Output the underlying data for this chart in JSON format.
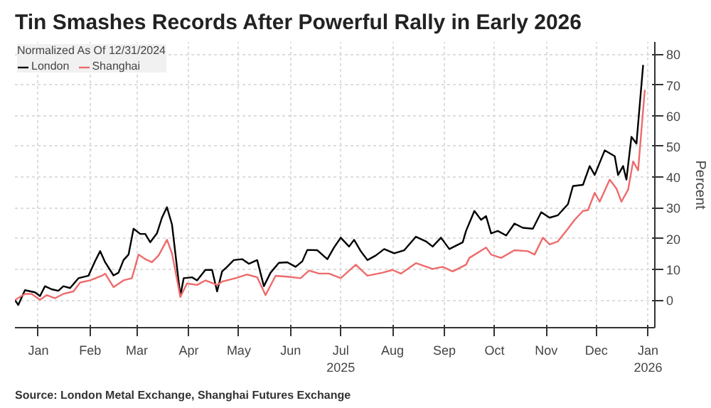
{
  "chart_data": {
    "type": "line",
    "title": "Tin Smashes Records After Powerful Rally in Early 2026",
    "legend_title": "Normalized As Of 12/31/2024",
    "ylabel": "Percent",
    "annotations": [
      "Source: London Metal Exchange, Shanghai Futures Exchange"
    ],
    "xlim": [
      "2025-01-01",
      "2026-01-19"
    ],
    "xticks": [
      {
        "value": "2025-01-15",
        "label": "Jan"
      },
      {
        "value": "2025-02-15",
        "label": "Feb"
      },
      {
        "value": "2025-03-15",
        "label": "Mar"
      },
      {
        "value": "2025-04-15",
        "label": "Apr"
      },
      {
        "value": "2025-05-15",
        "label": "May"
      },
      {
        "value": "2025-06-15",
        "label": "Jun"
      },
      {
        "value": "2025-07-15",
        "label": "Jul\n2025"
      },
      {
        "value": "2025-08-15",
        "label": "Aug"
      },
      {
        "value": "2025-09-15",
        "label": "Sep"
      },
      {
        "value": "2025-10-15",
        "label": "Oct"
      },
      {
        "value": "2025-11-15",
        "label": "Nov"
      },
      {
        "value": "2025-12-15",
        "label": "Dec"
      },
      {
        "value": "2026-01-15",
        "label": "Jan\n2026"
      }
    ],
    "ylim": [
      -9,
      84
    ],
    "yticks": [
      0,
      10,
      20,
      30,
      40,
      50,
      60,
      70,
      80
    ],
    "grid": true,
    "legend": "top left",
    "marker": "none",
    "line_style": "solid",
    "series": [
      {
        "name": "London",
        "color": "#000000",
        "x": [
          "2025-01-01",
          "2025-01-03",
          "2025-01-07",
          "2025-01-13",
          "2025-01-16",
          "2025-01-19",
          "2025-01-23",
          "2025-01-27",
          "2025-01-30",
          "2025-02-03",
          "2025-02-08",
          "2025-02-14",
          "2025-02-18",
          "2025-02-21",
          "2025-02-24",
          "2025-03-01",
          "2025-03-04",
          "2025-03-07",
          "2025-03-10",
          "2025-03-13",
          "2025-03-17",
          "2025-03-20",
          "2025-03-23",
          "2025-03-27",
          "2025-03-30",
          "2025-04-02",
          "2025-04-05",
          "2025-04-10",
          "2025-04-12",
          "2025-04-17",
          "2025-04-20",
          "2025-04-25",
          "2025-04-29",
          "2025-05-02",
          "2025-05-05",
          "2025-05-08",
          "2025-05-12",
          "2025-05-17",
          "2025-05-21",
          "2025-05-26",
          "2025-05-30",
          "2025-06-03",
          "2025-06-08",
          "2025-06-13",
          "2025-06-18",
          "2025-06-22",
          "2025-06-25",
          "2025-07-01",
          "2025-07-07",
          "2025-07-11",
          "2025-07-15",
          "2025-07-20",
          "2025-07-23",
          "2025-07-27",
          "2025-07-31",
          "2025-08-05",
          "2025-08-10",
          "2025-08-16",
          "2025-08-22",
          "2025-08-29",
          "2025-09-04",
          "2025-09-08",
          "2025-09-13",
          "2025-09-18",
          "2025-09-26",
          "2025-09-28",
          "2025-10-03",
          "2025-10-07",
          "2025-10-10",
          "2025-10-13",
          "2025-10-17",
          "2025-10-22",
          "2025-10-27",
          "2025-11-01",
          "2025-11-07",
          "2025-11-12",
          "2025-11-17",
          "2025-11-22",
          "2025-11-28",
          "2025-12-01",
          "2025-12-07",
          "2025-12-11",
          "2025-12-14",
          "2025-12-20",
          "2025-12-26",
          "2025-12-28",
          "2025-12-31",
          "2026-01-02",
          "2026-01-05",
          "2026-01-08",
          "2026-01-12"
        ],
        "values": [
          0,
          -1.6,
          3.2,
          2.5,
          1.3,
          4.5,
          3.5,
          3,
          4.5,
          3.9,
          7.1,
          7.9,
          12.7,
          15.9,
          12.3,
          8,
          8.9,
          13,
          14.8,
          23.2,
          21.5,
          21.5,
          18.8,
          21.7,
          26.8,
          30.2,
          24.6,
          1.3,
          7.1,
          7.4,
          6.4,
          9.8,
          9.8,
          2.8,
          9.3,
          10.8,
          13,
          13.3,
          11.8,
          13,
          4.5,
          8.9,
          12.1,
          12.3,
          10.8,
          12.6,
          16.3,
          16.2,
          13.3,
          17.1,
          20.3,
          17.4,
          19.6,
          15.9,
          13,
          14.5,
          16.6,
          15.2,
          16.2,
          20.6,
          19.1,
          17.4,
          20.3,
          16.6,
          18.8,
          22.5,
          29,
          26.1,
          27.3,
          21.7,
          22.5,
          21,
          24.9,
          23.5,
          23.2,
          28.6,
          26.8,
          27.6,
          31.2,
          37.1,
          37.5,
          43.6,
          40.7,
          48.7,
          46.8,
          40.7,
          43.6,
          39.2,
          53.1,
          50.9,
          76.5
        ]
      },
      {
        "name": "Shanghai",
        "color": "#ee6b6b",
        "x": [
          "2025-01-01",
          "2025-01-07",
          "2025-01-11",
          "2025-01-16",
          "2025-01-20",
          "2025-01-25",
          "2025-01-30",
          "2025-02-05",
          "2025-02-09",
          "2025-02-15",
          "2025-02-22",
          "2025-02-24",
          "2025-03-01",
          "2025-03-07",
          "2025-03-12",
          "2025-03-16",
          "2025-03-20",
          "2025-03-24",
          "2025-03-28",
          "2025-04-02",
          "2025-04-05",
          "2025-04-10",
          "2025-04-14",
          "2025-04-20",
          "2025-04-25",
          "2025-05-02",
          "2025-05-05",
          "2025-05-13",
          "2025-05-20",
          "2025-05-26",
          "2025-05-31",
          "2025-06-06",
          "2025-06-13",
          "2025-06-21",
          "2025-06-26",
          "2025-07-02",
          "2025-07-08",
          "2025-07-15",
          "2025-07-24",
          "2025-07-31",
          "2025-08-09",
          "2025-08-15",
          "2025-08-20",
          "2025-08-29",
          "2025-09-08",
          "2025-09-14",
          "2025-09-20",
          "2025-09-28",
          "2025-09-30",
          "2025-10-10",
          "2025-10-13",
          "2025-10-19",
          "2025-10-27",
          "2025-11-04",
          "2025-11-08",
          "2025-11-13",
          "2025-11-17",
          "2025-11-22",
          "2025-11-28",
          "2025-12-02",
          "2025-12-07",
          "2025-12-10",
          "2025-12-14",
          "2025-12-17",
          "2025-12-23",
          "2025-12-27",
          "2025-12-30",
          "2026-01-03",
          "2026-01-06",
          "2026-01-09",
          "2026-01-13"
        ],
        "values": [
          0,
          2,
          2,
          0.1,
          1.6,
          0.6,
          2,
          2.8,
          5.7,
          6.4,
          7.9,
          8.6,
          4.2,
          6.4,
          7.1,
          14.8,
          13.3,
          12.3,
          14.5,
          19.6,
          15.2,
          1,
          5.4,
          4.9,
          6.4,
          4.9,
          6,
          7.1,
          8.3,
          7.4,
          1.6,
          7.9,
          7.6,
          7.1,
          9.6,
          8.6,
          8.6,
          7.1,
          11.5,
          7.9,
          8.9,
          9.8,
          8.6,
          12,
          10.1,
          10.8,
          9.3,
          11.5,
          13.7,
          17.1,
          14.8,
          13.7,
          16.2,
          15.9,
          14.8,
          20.3,
          18.1,
          19.1,
          23.2,
          26.1,
          29,
          29.3,
          34.9,
          32,
          39.2,
          36.3,
          32,
          35.9,
          45.1,
          42.2,
          68.4
        ]
      }
    ]
  }
}
